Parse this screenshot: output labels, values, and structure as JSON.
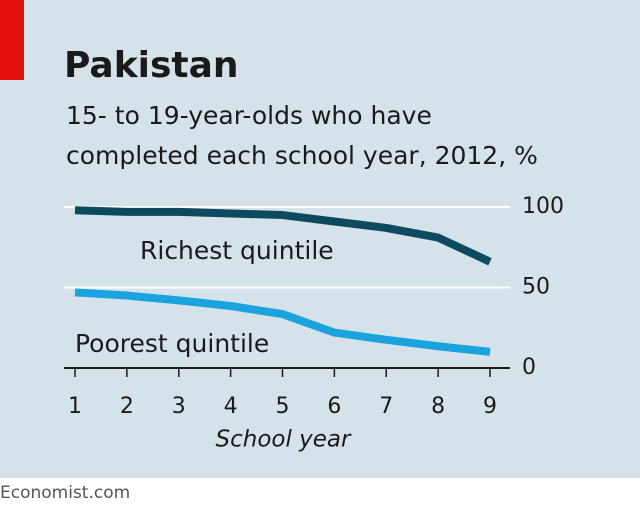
{
  "chart_data": {
    "type": "line",
    "title": "Pakistan",
    "subtitle": [
      "15- to 19-year-olds who have",
      "completed each school year, 2012, %"
    ],
    "x_label": "School year",
    "source": "Economist.com",
    "x": [
      1,
      2,
      3,
      4,
      5,
      6,
      7,
      8,
      9
    ],
    "xlim": [
      1,
      9
    ],
    "xticks": [
      1,
      2,
      3,
      4,
      5,
      6,
      7,
      8,
      9
    ],
    "ylim": [
      0,
      100
    ],
    "yticks": [
      0,
      50,
      100
    ],
    "grid": true,
    "series": [
      {
        "name": "Richest quintile",
        "color": "#0d4a5f",
        "values": [
          98,
          97,
          97,
          96,
          95,
          91,
          87,
          81,
          66
        ]
      },
      {
        "name": "Poorest quintile",
        "color": "#1aa3dc",
        "values": [
          47,
          45,
          42,
          38.5,
          33.5,
          22,
          17.5,
          13.5,
          10
        ]
      }
    ]
  }
}
